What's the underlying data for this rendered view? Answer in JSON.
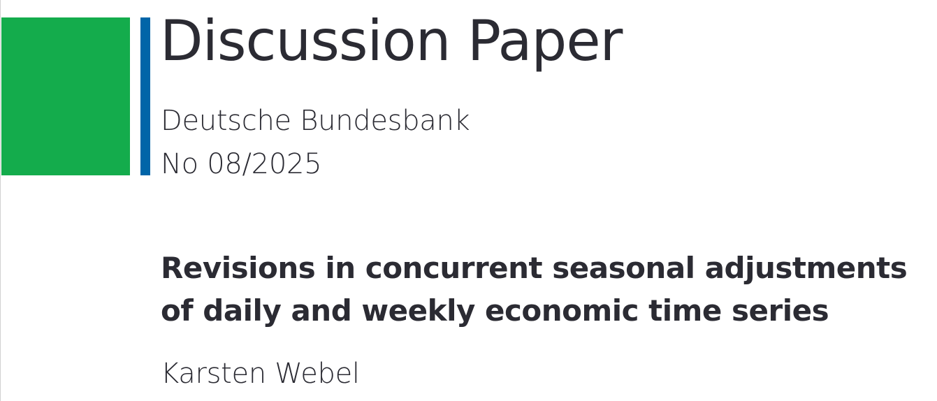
{
  "colors": {
    "brand_green": "#14AC4C",
    "brand_blue": "#0065A8",
    "text": "#2B2B33"
  },
  "header": {
    "series_title": "Discussion Paper",
    "publisher": "Deutsche Bundesbank",
    "number": "No 08/2025"
  },
  "paper": {
    "title_lines": [
      "Revisions in concurrent seasonal adjustments",
      "of daily and weekly economic time series"
    ],
    "author": "Karsten Webel"
  }
}
